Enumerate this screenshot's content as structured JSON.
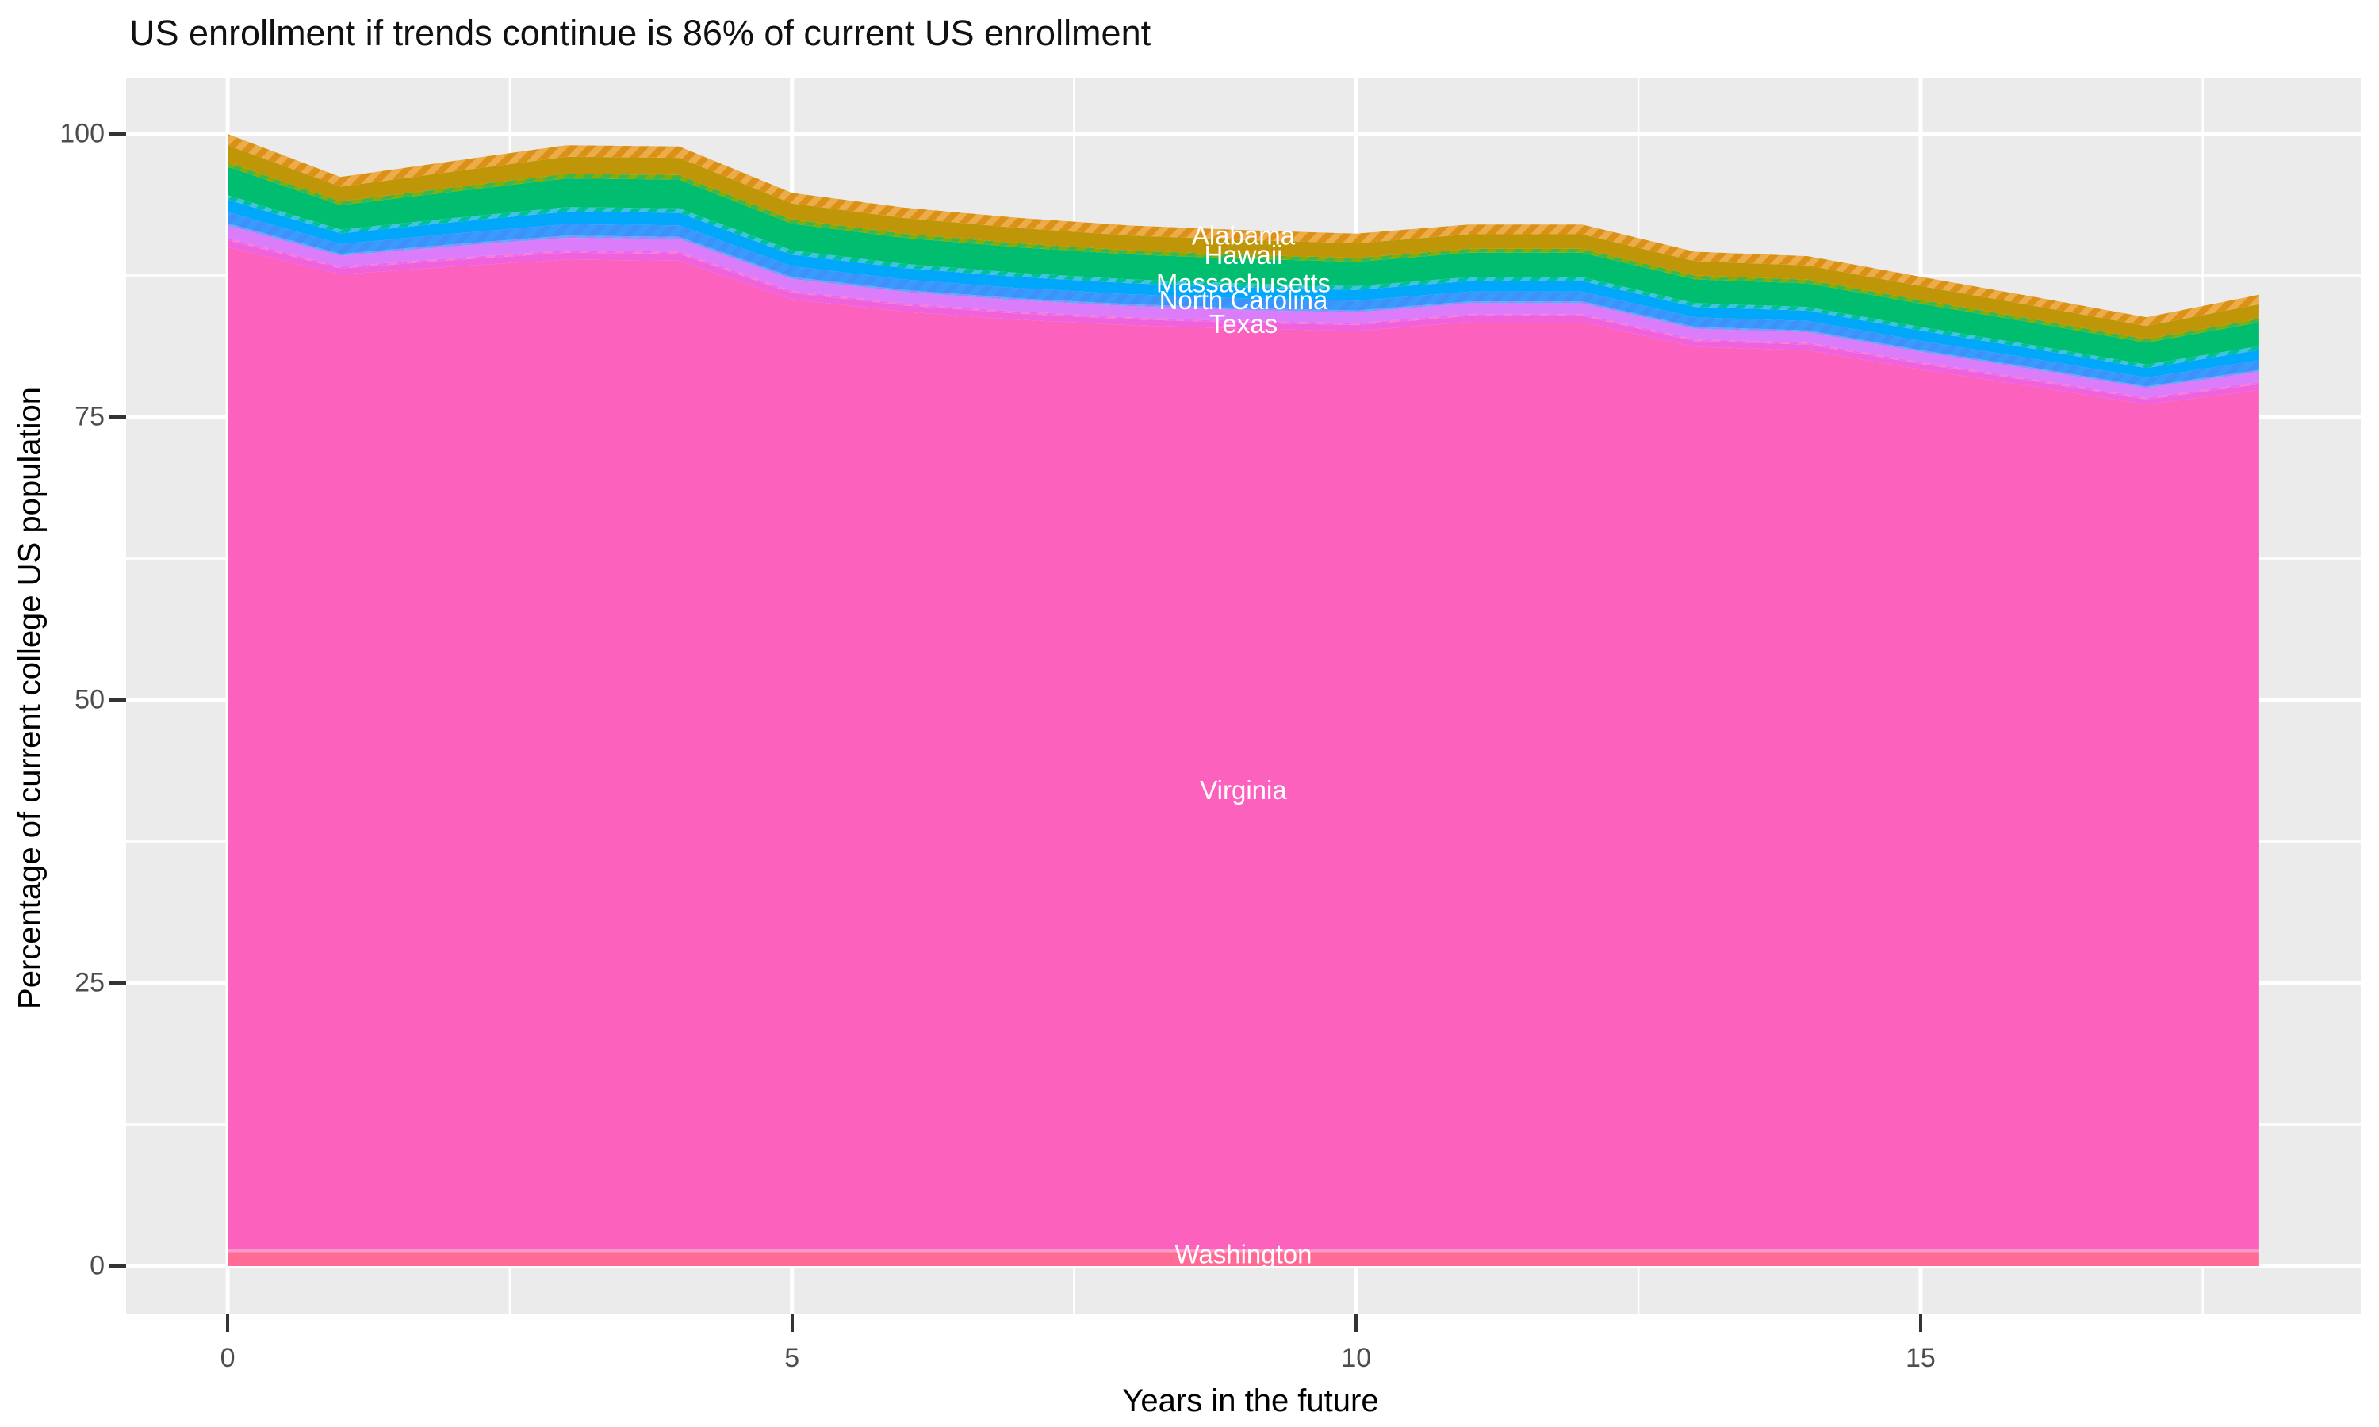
{
  "title": "US enrollment if trends continue is 86% of current US enrollment",
  "axes": {
    "x": {
      "label": "Years in the future",
      "tick_labels": [
        "0",
        "5",
        "10",
        "15"
      ],
      "tick_values": [
        0,
        5,
        10,
        15
      ],
      "minor_gridlines": [
        2.5,
        7.5,
        12.5,
        17.5
      ],
      "domain": [
        0,
        18
      ]
    },
    "y": {
      "label": "Percentage of current college US population",
      "tick_labels": [
        "0",
        "25",
        "50",
        "75",
        "100"
      ],
      "tick_values": [
        0,
        25,
        50,
        75,
        100
      ],
      "minor_gridlines": [
        12.5,
        37.5,
        62.5,
        87.5
      ],
      "domain": [
        0,
        100
      ]
    }
  },
  "panel": {
    "background": "#ebebeb",
    "major_grid_color": "#ffffff",
    "minor_grid_color": "#ffffff"
  },
  "chart_data": {
    "type": "area",
    "stacked": true,
    "title": "US enrollment if trends continue is 86% of current US enrollment",
    "xlabel": "Years in the future",
    "ylabel": "Percentage of current college US population",
    "xlim": [
      0,
      18
    ],
    "ylim": [
      0,
      100
    ],
    "legend": "none",
    "x": [
      0,
      1,
      2,
      3,
      4,
      5,
      6,
      7,
      8,
      9,
      10,
      11,
      12,
      13,
      14,
      15,
      16,
      17,
      18
    ],
    "total_top_edge": [
      100.0,
      96.2,
      97.6,
      99.0,
      98.9,
      94.8,
      93.5,
      92.6,
      91.9,
      91.5,
      91.2,
      92.0,
      92.0,
      89.6,
      89.2,
      87.4,
      85.6,
      83.8,
      85.8
    ],
    "series": [
      {
        "name": "Washington",
        "labeled": true,
        "color": "#FF6B94",
        "values": [
          1.25,
          1.25,
          1.25,
          1.25,
          1.25,
          1.25,
          1.25,
          1.25,
          1.25,
          1.25,
          1.25,
          1.25,
          1.25,
          1.25,
          1.25,
          1.25,
          1.25,
          1.25,
          1.25
        ]
      },
      {
        "name": "unlabeled-slivers-pale-pink",
        "labeled": false,
        "color": "#FF9CC8",
        "values": [
          0.2,
          0.2,
          0.2,
          0.2,
          0.2,
          0.2,
          0.2,
          0.2,
          0.2,
          0.2,
          0.2,
          0.2,
          0.2,
          0.2,
          0.2,
          0.2,
          0.2,
          0.2,
          0.2
        ]
      },
      {
        "name": "Virginia",
        "labeled": true,
        "color": "#FC61BD",
        "values": [
          88.55,
          86.15,
          86.85,
          87.45,
          87.35,
          83.95,
          82.85,
          82.15,
          81.65,
          81.35,
          81.15,
          81.95,
          81.95,
          79.75,
          79.45,
          77.75,
          76.25,
          74.65,
          75.95
        ]
      },
      {
        "name": "Texas",
        "labeled": true,
        "color": "#F061DC",
        "values": [
          0.6,
          0.52,
          0.56,
          0.61,
          0.61,
          0.56,
          0.55,
          0.54,
          0.53,
          0.52,
          0.52,
          0.52,
          0.52,
          0.5,
          0.5,
          0.49,
          0.47,
          0.46,
          0.5
        ]
      },
      {
        "name": "unlabeled-slivers-magenta",
        "labeled": false,
        "color": "#E968EC",
        "stripe": "#F87BDC",
        "values": [
          0.2,
          0.17,
          0.19,
          0.2,
          0.2,
          0.19,
          0.18,
          0.18,
          0.18,
          0.17,
          0.17,
          0.17,
          0.17,
          0.17,
          0.17,
          0.16,
          0.16,
          0.15,
          0.17
        ]
      },
      {
        "name": "North Carolina",
        "labeled": true,
        "color": "#DB7CFA",
        "values": [
          1.1,
          0.95,
          1.02,
          1.11,
          1.11,
          1.03,
          1.01,
          0.99,
          0.97,
          0.96,
          0.95,
          0.95,
          0.95,
          0.92,
          0.91,
          0.9,
          0.87,
          0.85,
          0.92
        ]
      },
      {
        "name": "unlabeled-slivers-periwinkle",
        "labeled": false,
        "color": "#8F8CFC",
        "stripe": "#6FA6FC",
        "values": [
          0.2,
          0.17,
          0.19,
          0.2,
          0.2,
          0.19,
          0.18,
          0.18,
          0.18,
          0.17,
          0.17,
          0.17,
          0.17,
          0.17,
          0.17,
          0.16,
          0.16,
          0.15,
          0.17
        ]
      },
      {
        "name": "unlabeled-slivers-blue",
        "labeled": false,
        "color": "#3D92FA",
        "stripe": "#3A9BFE",
        "values": [
          1.0,
          0.86,
          0.93,
          1.01,
          1.01,
          0.94,
          0.92,
          0.9,
          0.88,
          0.87,
          0.86,
          0.86,
          0.86,
          0.84,
          0.83,
          0.82,
          0.79,
          0.77,
          0.84
        ]
      },
      {
        "name": "Massachusetts",
        "labeled": true,
        "color": "#00A7FB",
        "values": [
          1.1,
          0.95,
          1.02,
          1.11,
          1.11,
          1.03,
          1.01,
          0.99,
          0.97,
          0.96,
          0.95,
          0.95,
          0.95,
          0.92,
          0.91,
          0.9,
          0.87,
          0.85,
          0.92
        ]
      },
      {
        "name": "unlabeled-slivers-teal",
        "labeled": false,
        "color": "#00C09C",
        "stripe": "#3FC4DF",
        "values": [
          0.4,
          0.34,
          0.37,
          0.4,
          0.4,
          0.38,
          0.37,
          0.36,
          0.35,
          0.35,
          0.34,
          0.34,
          0.34,
          0.34,
          0.33,
          0.33,
          0.32,
          0.31,
          0.34
        ]
      },
      {
        "name": "Hawaii",
        "labeled": true,
        "color": "#00BD6F",
        "values": [
          2.5,
          2.15,
          2.33,
          2.53,
          2.53,
          2.35,
          2.3,
          2.25,
          2.2,
          2.18,
          2.15,
          2.15,
          2.15,
          2.1,
          2.08,
          2.05,
          1.98,
          1.93,
          2.1
        ]
      },
      {
        "name": "unlabeled-slivers-yellowgreen",
        "labeled": false,
        "color": "#86AD08",
        "stripe": "#3FB64A",
        "values": [
          0.4,
          0.34,
          0.37,
          0.4,
          0.4,
          0.38,
          0.37,
          0.36,
          0.35,
          0.35,
          0.34,
          0.34,
          0.34,
          0.34,
          0.33,
          0.33,
          0.32,
          0.31,
          0.34
        ]
      },
      {
        "name": "Alabama",
        "labeled": true,
        "color": "#BE9607",
        "values": [
          1.5,
          1.29,
          1.4,
          1.52,
          1.52,
          1.41,
          1.38,
          1.35,
          1.32,
          1.31,
          1.29,
          1.29,
          1.29,
          1.26,
          1.25,
          1.23,
          1.19,
          1.16,
          1.26
        ]
      },
      {
        "name": "unlabeled-slivers-orange",
        "labeled": false,
        "color": "#DB9117",
        "stripe": "#ECAC49",
        "values": [
          1.0,
          0.86,
          0.93,
          1.01,
          1.01,
          0.94,
          0.92,
          0.9,
          0.88,
          0.87,
          0.86,
          0.86,
          0.86,
          0.84,
          0.83,
          0.82,
          0.79,
          0.77,
          0.84
        ]
      }
    ],
    "area_labels": [
      {
        "text": "Alabama",
        "x": 9,
        "y": 91.0,
        "color": "#ffffff"
      },
      {
        "text": "Hawaii",
        "x": 9,
        "y": 89.3,
        "color": "#ffffff"
      },
      {
        "text": "Massachusetts",
        "x": 9,
        "y": 86.8,
        "color": "#ffffff"
      },
      {
        "text": "North Carolina",
        "x": 9,
        "y": 85.3,
        "color": "#ffffff"
      },
      {
        "text": "Texas",
        "x": 9,
        "y": 83.2,
        "color": "#ffffff"
      },
      {
        "text": "Virginia",
        "x": 9,
        "y": 42.0,
        "color": "#ffffff"
      },
      {
        "text": "Washington",
        "x": 9,
        "y": 1.0,
        "color": "#ffffff"
      }
    ]
  }
}
